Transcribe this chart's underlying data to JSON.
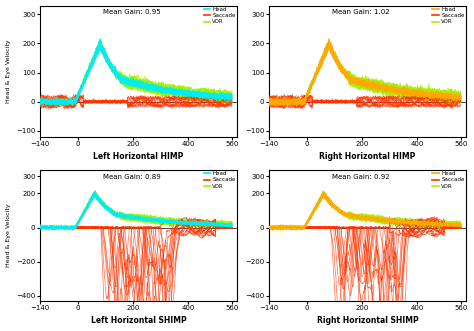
{
  "subplots": [
    {
      "title": "Mean Gain: 0.95",
      "xlabel": "Left Horizontal HIMP",
      "ylabel": "Head & Eye Velocity",
      "ylim": [
        -120,
        330
      ],
      "yticks": [
        -100,
        0,
        100,
        200,
        300
      ],
      "xlim": [
        -140,
        580
      ],
      "xticks": [
        -140,
        0,
        200,
        400,
        560
      ],
      "head_color": "#00eeee",
      "saccade_color": "#ff3300",
      "vor_color": "#aaee00",
      "peak": 200,
      "peak_x": 80,
      "is_shimp": false,
      "n_trials": 15
    },
    {
      "title": "Mean Gain: 1.02",
      "xlabel": "Right Horizontal HIMP",
      "ylabel": "Head & Eye Velocity",
      "ylim": [
        -120,
        330
      ],
      "yticks": [
        -100,
        0,
        100,
        200,
        300
      ],
      "xlim": [
        -140,
        580
      ],
      "xticks": [
        -140,
        0,
        200,
        400,
        560
      ],
      "head_color": "#ffaa00",
      "saccade_color": "#ff3300",
      "vor_color": "#aaee00",
      "peak": 200,
      "peak_x": 80,
      "is_shimp": false,
      "n_trials": 15
    },
    {
      "title": "Mean Gain: 0.89",
      "xlabel": "Left Horizontal SHIMP",
      "ylabel": "Head & Eye Velocity",
      "ylim": [
        -430,
        340
      ],
      "yticks": [
        -400,
        -200,
        0,
        200,
        300
      ],
      "xlim": [
        -140,
        580
      ],
      "xticks": [
        -140,
        0,
        200,
        400,
        560
      ],
      "head_color": "#00eeee",
      "saccade_color": "#ff3300",
      "vor_color": "#aaee00",
      "peak": 200,
      "peak_x": 60,
      "is_shimp": true,
      "n_trials": 15
    },
    {
      "title": "Mean Gain: 0.92",
      "xlabel": "Right Horizontal SHIMP",
      "ylabel": "Head & Eye Velocity",
      "ylim": [
        -430,
        340
      ],
      "yticks": [
        -400,
        -200,
        0,
        200,
        300
      ],
      "xlim": [
        -140,
        580
      ],
      "xticks": [
        -140,
        0,
        200,
        400,
        560
      ],
      "head_color": "#ffaa00",
      "saccade_color": "#ff3300",
      "vor_color": "#aaee00",
      "peak": 200,
      "peak_x": 60,
      "is_shimp": true,
      "n_trials": 15
    }
  ],
  "bg_color": "#f0f0f0"
}
